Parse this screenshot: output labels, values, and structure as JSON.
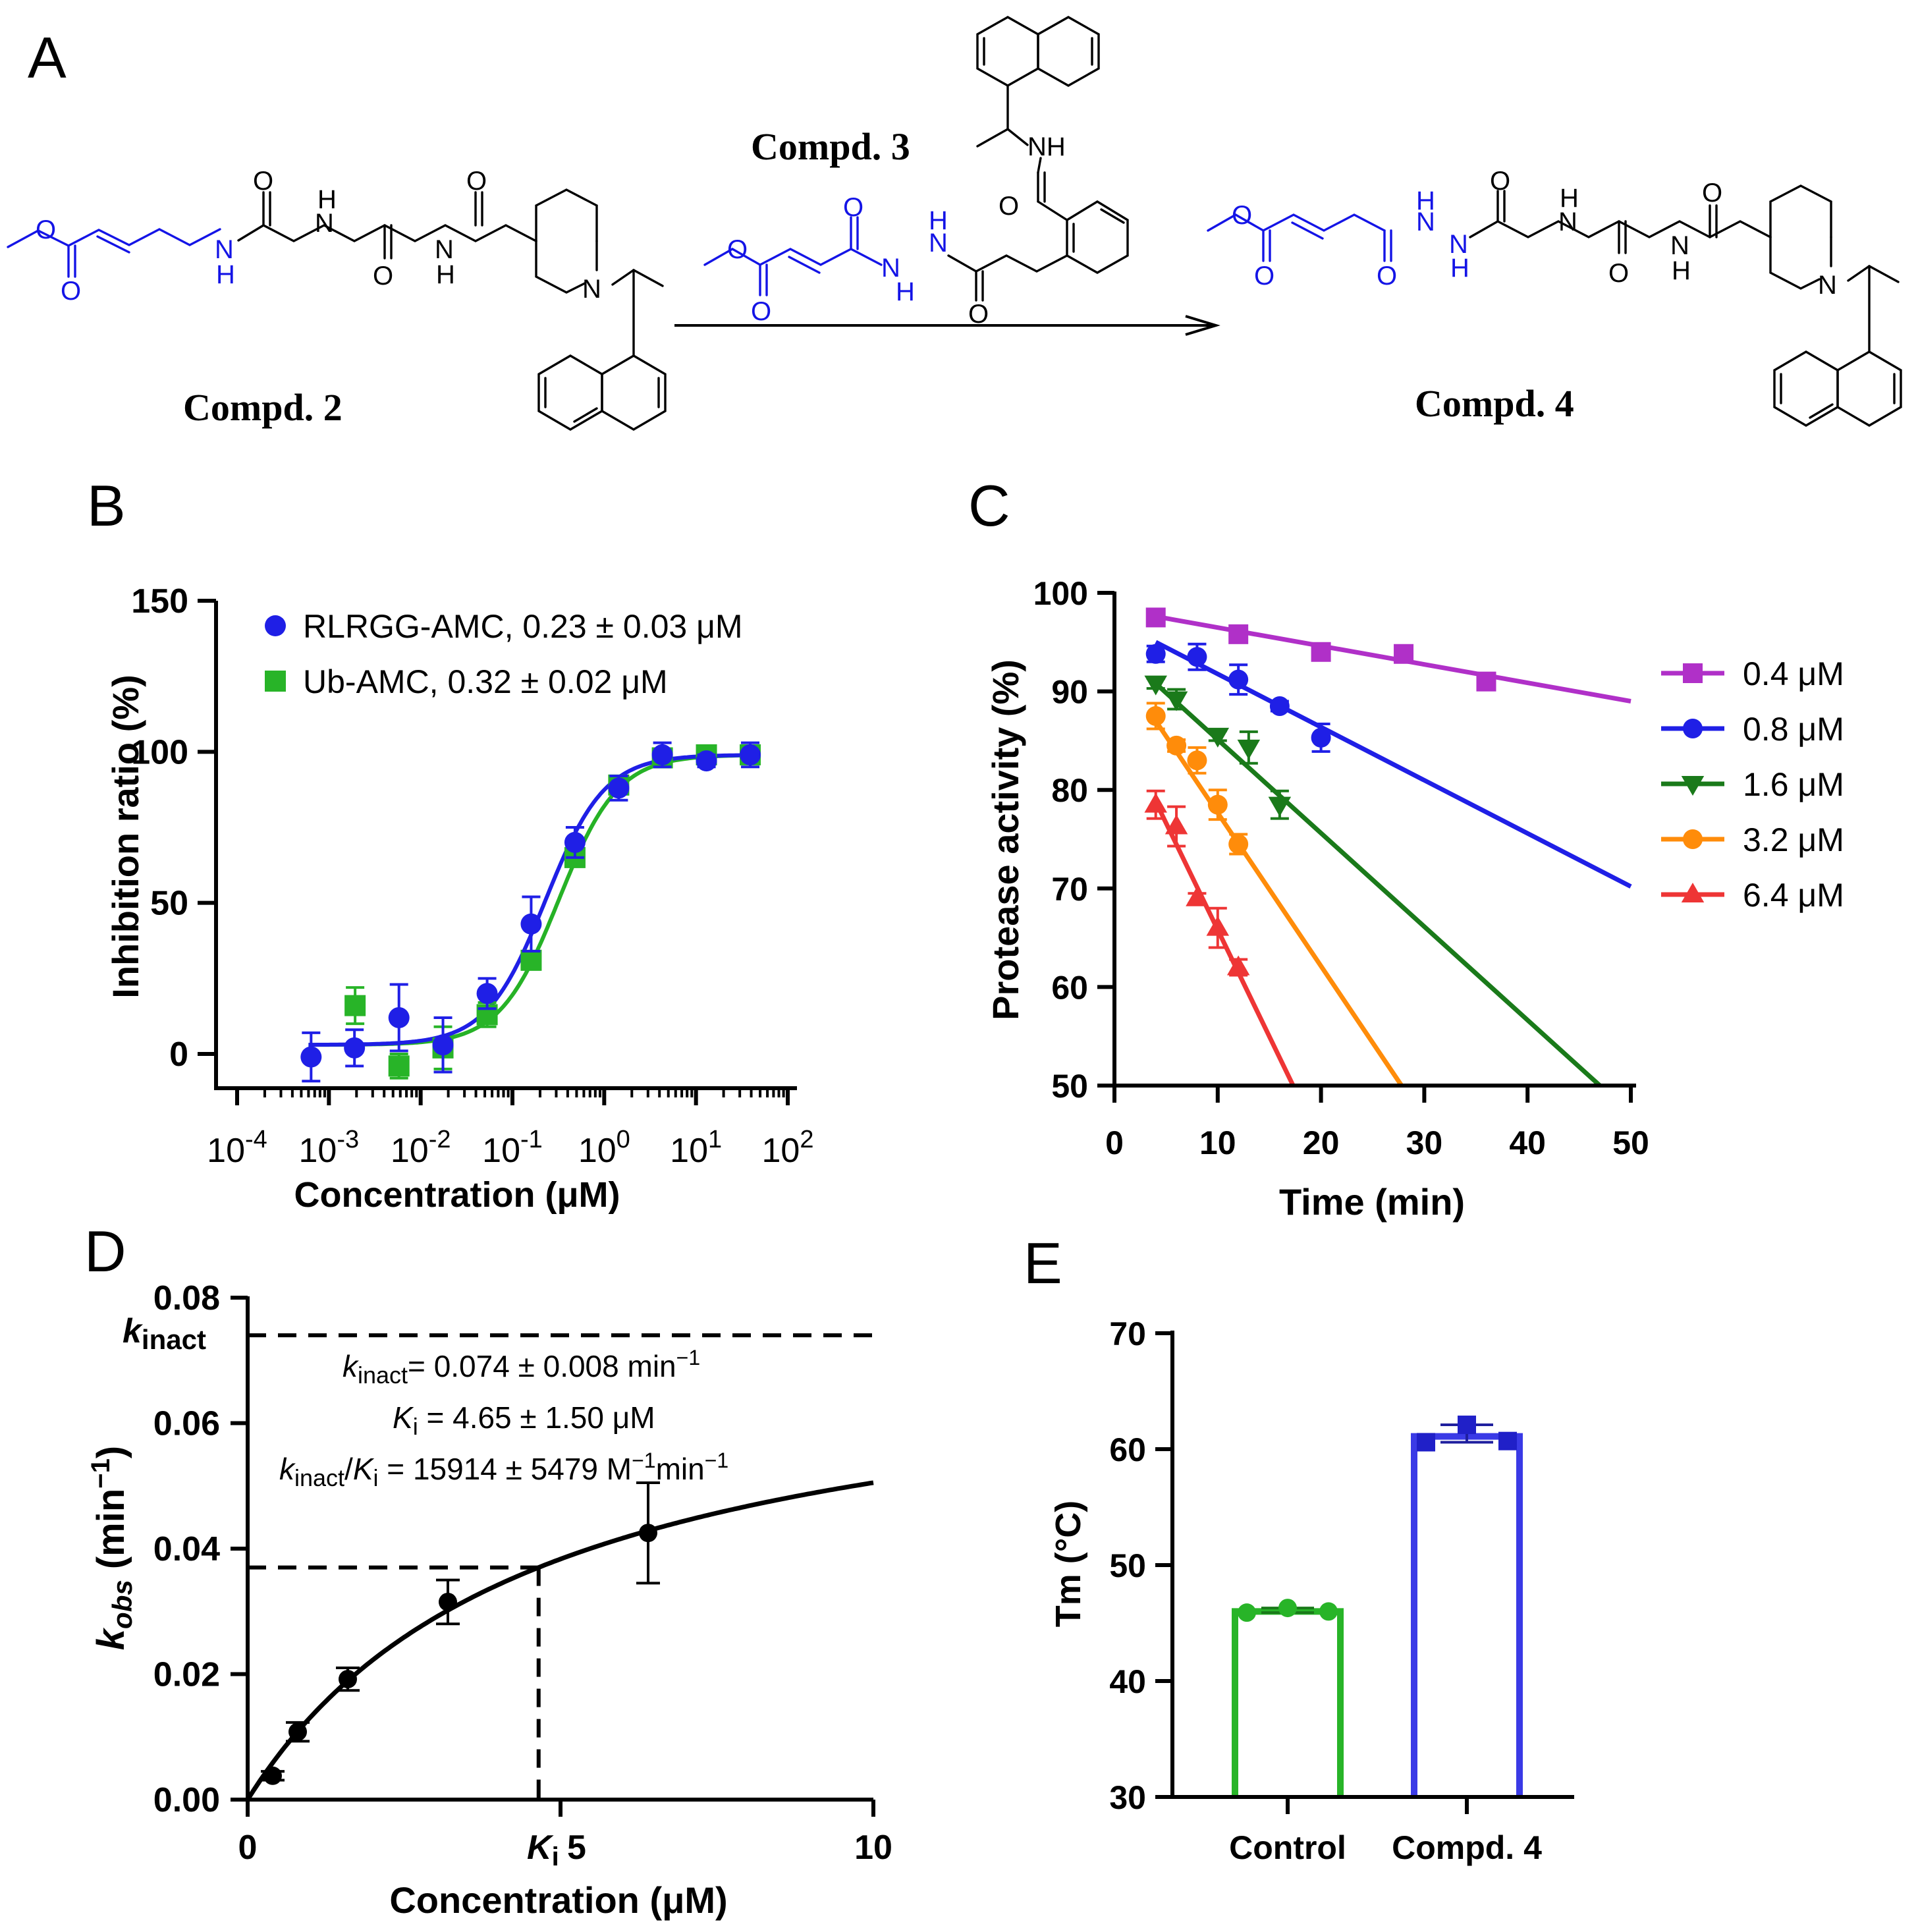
{
  "panels": {
    "A": {
      "label": "A",
      "compounds": {
        "c2": "Compd. 2",
        "c3": "Compd. 3",
        "c4": "Compd. 4"
      },
      "atoms": {
        "O": "O",
        "N": "N",
        "H": "H",
        "NH": "NH"
      }
    },
    "B": {
      "label": "B",
      "colors": {
        "s1": "#1f1fe6",
        "s2": "#28b428",
        "fit1": "#1f1fe6",
        "fit2": "#26b226"
      }
    },
    "C": {
      "label": "C",
      "colors": [
        "#b030c8",
        "#1f1fe6",
        "#1a7a1a",
        "#ff8c0a",
        "#ee3535"
      ]
    },
    "D": {
      "label": "D",
      "kinact_label": "k",
      "kinact_sub": "inact",
      "eq1": {
        "k": "k",
        "sub": "inact",
        "rest": "= 0.074 ± 0.008 min",
        "sup": "−1"
      },
      "eq2": {
        "k": "K",
        "sub": "i",
        "rest": "  = 4.65 ± 1.50 μM"
      },
      "eq3": {
        "k": "k",
        "sub": "inact",
        "slash": "/",
        "k2": "K",
        "sub2": "i",
        "rest": "  = 15914 ± 5479 M",
        "sup": "−1",
        "rest2": "min",
        "sup2": "−1"
      },
      "ki_tick": {
        "k": "K",
        "sub": "i"
      }
    },
    "E": {
      "label": "E",
      "colors": [
        "#28b428",
        "#3a3ae6"
      ]
    }
  },
  "chart_data": [
    {
      "panel": "B",
      "type": "scatter",
      "xlabel": "Concentration (μM)",
      "ylabel": "Inhibition ratio (%)",
      "xscale": "log",
      "xlim": [
        0.0001,
        100
      ],
      "ylim": [
        -10,
        150
      ],
      "xtick_labels": [
        {
          "base": "10",
          "exp": "-4"
        },
        {
          "base": "10",
          "exp": "-3"
        },
        {
          "base": "10",
          "exp": "-2"
        },
        {
          "base": "10",
          "exp": "-1"
        },
        {
          "base": "10",
          "exp": "0"
        },
        {
          "base": "10",
          "exp": "1"
        },
        {
          "base": "10",
          "exp": "2"
        }
      ],
      "yticks": [
        "0",
        "50",
        "100",
        "150"
      ],
      "legend_position": "top-left",
      "series": [
        {
          "name": "RLRGG-AMC, 0.23 ± 0.03 μM",
          "marker": "circle",
          "ic50": 0.23,
          "x": [
            0.00064,
            0.0019,
            0.0058,
            0.0175,
            0.053,
            0.16,
            0.48,
            1.44,
            4.3,
            13,
            39
          ],
          "y": [
            -1,
            2,
            12,
            3,
            20,
            43,
            70,
            88,
            99,
            97,
            99
          ],
          "err": [
            8,
            6,
            11,
            9,
            5,
            9,
            5,
            4,
            4,
            2,
            4
          ]
        },
        {
          "name": "Ub-AMC, 0.32 ± 0.02 μM",
          "marker": "square",
          "ic50": 0.32,
          "x": [
            0.00193,
            0.0058,
            0.0175,
            0.053,
            0.16,
            0.48,
            1.44,
            4.3,
            13,
            39
          ],
          "y": [
            16,
            -4,
            2,
            13,
            31,
            65,
            89,
            98,
            99,
            99
          ],
          "err": [
            6,
            4,
            7,
            4,
            3,
            3,
            3,
            2,
            2,
            2
          ]
        }
      ]
    },
    {
      "panel": "C",
      "type": "line",
      "xlabel": "Time (min)",
      "ylabel": "Protease activity (%)",
      "xlim": [
        0,
        50
      ],
      "ylim": [
        50,
        100
      ],
      "xticks": [
        "0",
        "10",
        "20",
        "30",
        "40",
        "50"
      ],
      "yticks": [
        "50",
        "60",
        "70",
        "80",
        "90",
        "100"
      ],
      "legend_position": "right",
      "series": [
        {
          "name": "0.4 μM",
          "marker": "square",
          "x": [
            4,
            12,
            20,
            28,
            36
          ],
          "y": [
            97.5,
            95.8,
            94,
            93.8,
            91
          ],
          "err": [
            0.6,
            0.7,
            0.8,
            0.6,
            0.6
          ],
          "fit": {
            "x0": 4,
            "y0": 97.6,
            "x1": 50,
            "y1": 89
          }
        },
        {
          "name": "0.8 μM",
          "marker": "circle",
          "x": [
            4,
            8,
            12,
            16,
            20
          ],
          "y": [
            93.8,
            93.5,
            91.2,
            88.5,
            85.3
          ],
          "err": [
            0.8,
            1.3,
            1.5,
            0.5,
            1.4
          ],
          "fit": {
            "x0": 4,
            "y0": 95,
            "x1": 50,
            "y1": 70.2
          }
        },
        {
          "name": "1.6 μM",
          "marker": "triangle-down",
          "x": [
            4,
            6,
            10,
            13,
            16
          ],
          "y": [
            90.8,
            89.2,
            85.5,
            84.3,
            78.5
          ],
          "err": [
            0.5,
            1.0,
            0.5,
            1.6,
            1.4
          ],
          "fit": {
            "x0": 4,
            "y0": 90.8,
            "x1": 47,
            "y1": 50
          }
        },
        {
          "name": "3.2 μM",
          "marker": "circle",
          "x": [
            4,
            6,
            8,
            10,
            12
          ],
          "y": [
            87.5,
            84.5,
            83,
            78.5,
            74.5
          ],
          "err": [
            1.3,
            0.6,
            1.3,
            1.5,
            1.0
          ],
          "fit": {
            "x0": 4,
            "y0": 87,
            "x1": 27.8,
            "y1": 50
          }
        },
        {
          "name": "6.4 μM",
          "marker": "triangle-up",
          "x": [
            4,
            6,
            8,
            10,
            12
          ],
          "y": [
            78.5,
            76.3,
            69,
            66,
            62
          ],
          "err": [
            1.4,
            2.0,
            0.5,
            2.0,
            0.8
          ],
          "fit": {
            "x0": 4,
            "y0": 78.8,
            "x1": 17.3,
            "y1": 50
          }
        }
      ]
    },
    {
      "panel": "D",
      "type": "scatter",
      "xlabel": "Concentration (μM)",
      "ylabel": "kobs (min−1)",
      "ylabel_parts": {
        "k": "k",
        "sub": "obs",
        "rest": " (min",
        "sup": "−1",
        "close": ")"
      },
      "xlim": [
        0,
        10
      ],
      "ylim": [
        0,
        0.08
      ],
      "xticks": [
        "0",
        "5",
        "10"
      ],
      "yticks": [
        "0.00",
        "0.02",
        "0.04",
        "0.06",
        "0.08"
      ],
      "kinact": 0.074,
      "Ki": 4.65,
      "series": [
        {
          "name": "kobs",
          "x": [
            0.4,
            0.8,
            1.6,
            3.2,
            6.4
          ],
          "y": [
            0.0038,
            0.0108,
            0.0192,
            0.0315,
            0.0425
          ],
          "err": [
            0.0007,
            0.0015,
            0.0018,
            0.0035,
            0.008
          ]
        }
      ]
    },
    {
      "panel": "E",
      "type": "bar",
      "ylabel": "Tm (°C)",
      "ylim": [
        30,
        70
      ],
      "yticks": [
        "30",
        "40",
        "50",
        "60",
        "70"
      ],
      "categories": [
        "Control",
        "Compd. 4"
      ],
      "values": [
        46.0,
        61.1
      ],
      "replicates": [
        [
          45.9,
          46.3,
          46.0
        ],
        [
          60.6,
          62.1,
          60.7
        ]
      ]
    }
  ]
}
